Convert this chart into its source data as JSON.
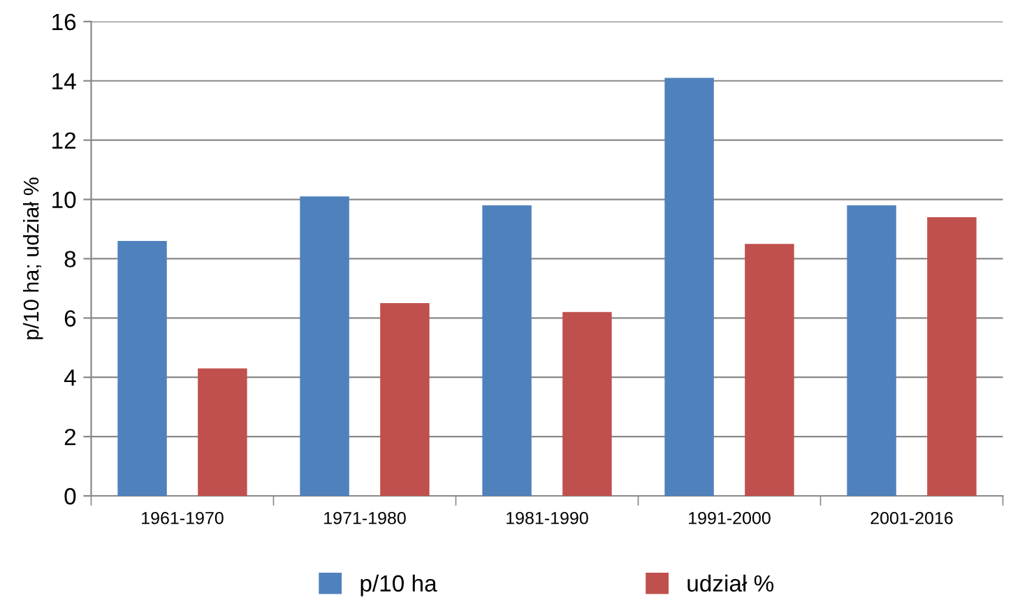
{
  "chart_data": {
    "type": "bar",
    "ylabel": "p/10 ha; udział %",
    "categories": [
      "1961-1970",
      "1971-1980",
      "1981-1990",
      "1991-2000",
      "2001-2016"
    ],
    "series": [
      {
        "name": "p/10 ha",
        "color": "#4f81bd",
        "values": [
          8.6,
          10.1,
          9.8,
          14.1,
          9.8
        ]
      },
      {
        "name": "udział %",
        "color": "#c0504d",
        "values": [
          4.3,
          6.5,
          6.2,
          8.5,
          9.4
        ]
      }
    ],
    "ylim": [
      0,
      16
    ],
    "yticks": [
      0,
      2,
      4,
      6,
      8,
      10,
      12,
      14,
      16
    ],
    "grid": "y",
    "legend": "bottom"
  }
}
